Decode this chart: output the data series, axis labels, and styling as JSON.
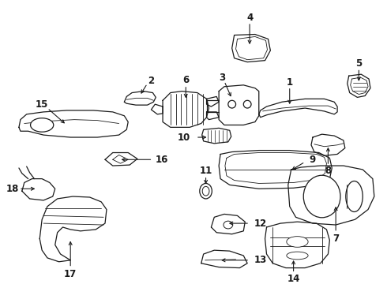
{
  "bg_color": "#ffffff",
  "line_color": "#1a1a1a",
  "label_fontsize": 8.5,
  "figsize": [
    4.9,
    3.6
  ],
  "dpi": 100
}
